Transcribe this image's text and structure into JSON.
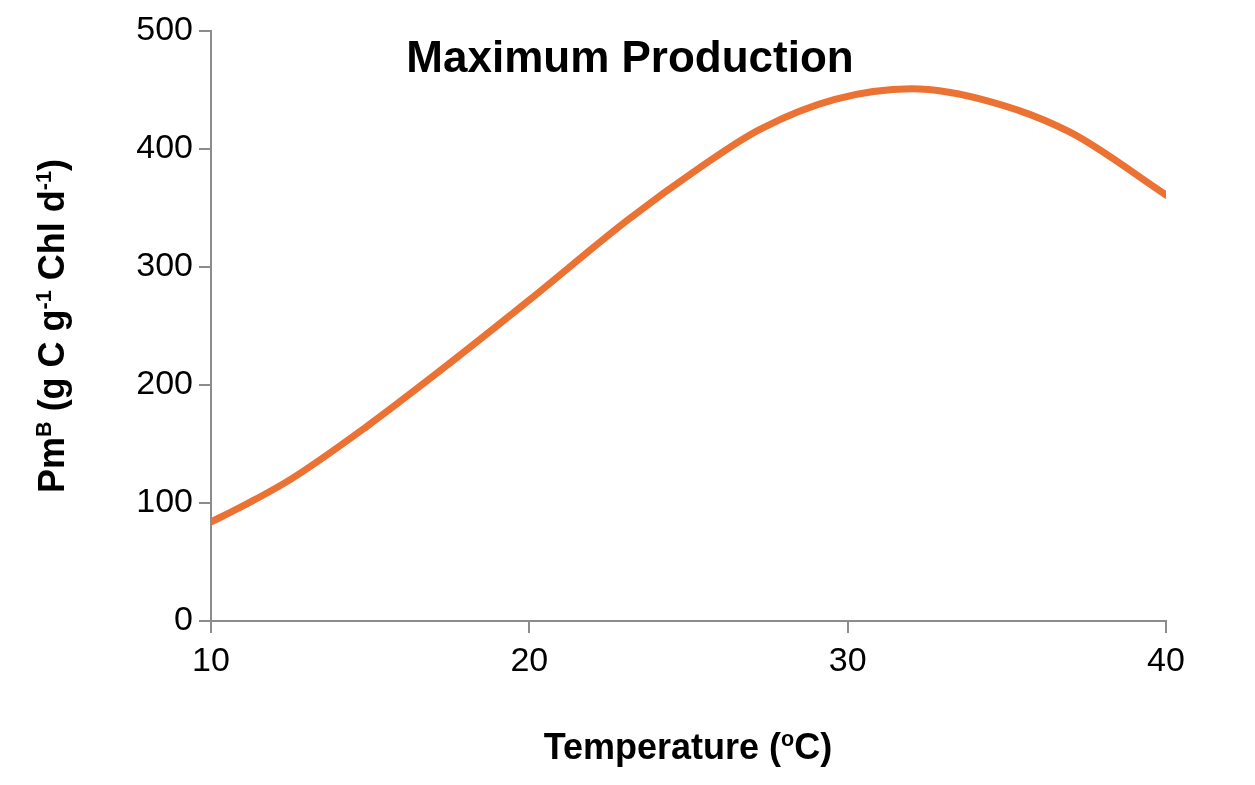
{
  "chart_data": {
    "type": "line",
    "title": "Maximum Production",
    "xlabel": "Temperature ($^{o}$C)",
    "ylabel": "Pm$^{B}$ (g C g$^{-1}$ Chl d$^{-1}$)",
    "x": [
      10,
      10.9,
      12.5,
      14.9,
      17,
      20,
      23.1,
      25.4,
      27.2,
      29.6,
      32,
      34.5,
      37,
      40
    ],
    "series": [
      {
        "color": "#eb7232",
        "values": [
          84,
          96,
          120,
          165,
          208,
          272,
          340,
          385,
          416,
          442,
          451,
          440,
          414,
          361
        ]
      }
    ],
    "xlim": [
      10,
      40
    ],
    "xticks": [
      10,
      20,
      30,
      40
    ],
    "ylim": [
      0,
      500
    ],
    "yticks": [
      0,
      100,
      200,
      300,
      400,
      500
    ],
    "grid": false,
    "legend": false,
    "marker": "none",
    "line_style": "solid"
  }
}
